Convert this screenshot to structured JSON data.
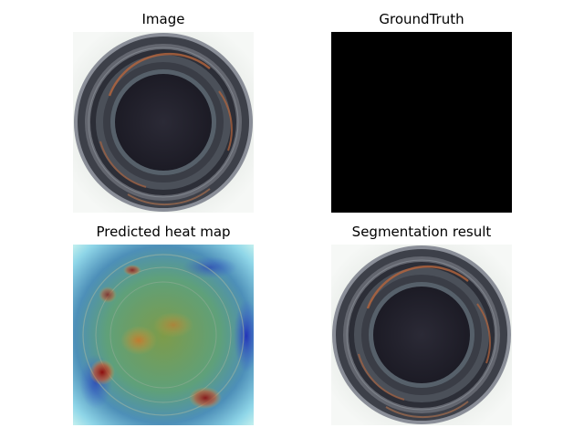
{
  "panels": [
    {
      "id": "image",
      "title": "Image"
    },
    {
      "id": "groundtruth",
      "title": "GroundTruth"
    },
    {
      "id": "heatmap",
      "title": "Predicted heat map"
    },
    {
      "id": "segmentation",
      "title": "Segmentation result"
    }
  ],
  "colors": {
    "background": "#ffffff",
    "groundtruth_fill": "#000000",
    "bottle_outer_ring": "#5b5f6b",
    "bottle_inner": "#23222d",
    "rust_highlight": "#b7653c"
  }
}
